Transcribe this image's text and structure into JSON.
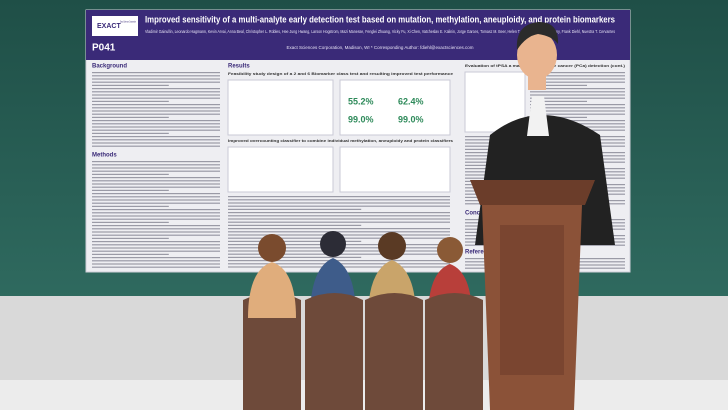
{
  "poster": {
    "number": "P041",
    "title": "Improved sensitivity of a multi-analyte early detection test based on mutation, methylation, aneuploidy, and protein biomarkers",
    "authors": "Vladimir Gainullin, Leonardo Hagmann, Kevin Arvai, Anna Beal, Christopher L. Robles, Hee Jung Hwang, Larson Hogstrom, Mazi Manesse, Fenglei Zhuang, Vicky Fu, Xi Chen, Vatcheslav E. Kalinin, Jorge Garces, Tomasz M. Beer, Helen T. Alexa, Abigail McElhinny, Frank Diehl, Nuestra T. Cervantes",
    "affiliation": "Exact Sciences Corporation, Madison, WI  * Corresponding Author: fdiehl@exactsciences.com",
    "logo": "EXACT",
    "logo_sub": "Exact Sciences Corporation",
    "sections": {
      "background": "Background",
      "methods": "Methods",
      "results": "Results",
      "feasibility": "Feasibility study design of a 2 and 6 Biomarker class test and resulting improved test performance",
      "classifier": "Improved overcounting classifier to combine individual methylation, aneuploidy and protein classifiers",
      "evaluation": "Evaluation of tPSA a marker for prostate cancer (PCa) detection (cont.)",
      "conclusions": "Conclusions",
      "references": "References and Acknowledgments"
    },
    "stats": [
      "55.2%",
      "62.4%",
      "99.0%",
      "99.0%"
    ]
  }
}
